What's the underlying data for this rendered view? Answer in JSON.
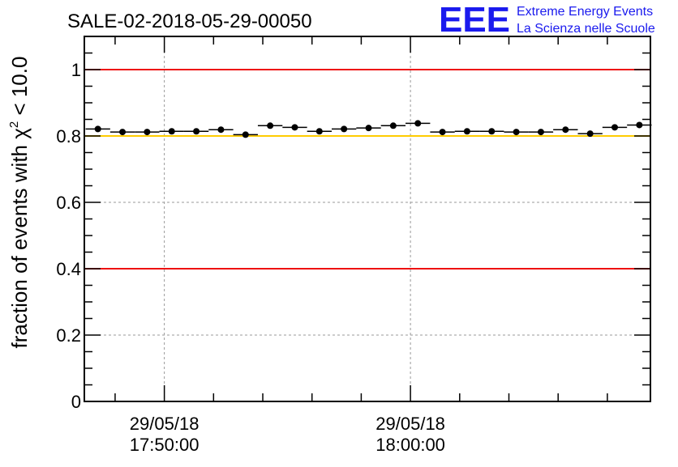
{
  "header": {
    "run_title": "SALE-02-2018-05-29-00050",
    "logo_letters": "EEE",
    "logo_line1": "Extreme Energy Events",
    "logo_line2": "La Scienza nelle Scuole"
  },
  "colors": {
    "red_line": "#ee1111",
    "yellow_line": "#ffcc00",
    "logo_blue": "#1a1aee",
    "points": "#000000",
    "grid": "#999999"
  },
  "chart_data": {
    "type": "scatter",
    "title": "SALE-02-2018-05-29-00050",
    "ylabel_prefix": "fraction of events with ",
    "ylabel_symbol": "χ",
    "ylabel_sup": "2",
    "ylabel_suffix": " < 10.0",
    "ylim": [
      0,
      1.1
    ],
    "yticks": [
      {
        "value": 0,
        "label": "0"
      },
      {
        "value": 0.2,
        "label": "0.2"
      },
      {
        "value": 0.4,
        "label": "0.4"
      },
      {
        "value": 0.6,
        "label": "0.6"
      },
      {
        "value": 0.8,
        "label": "0.8"
      },
      {
        "value": 1,
        "label": "1"
      }
    ],
    "xlim_minutes": [
      -3.25,
      19.75
    ],
    "xticks": [
      {
        "minute": 0,
        "date": "29/05/18",
        "time": "17:50:00"
      },
      {
        "minute": 10,
        "date": "29/05/18",
        "time": "18:00:00"
      }
    ],
    "minor_xticks_minutes": [
      -2,
      2,
      4,
      6,
      8,
      12,
      14,
      16,
      18
    ],
    "bin_width_minutes": 1,
    "reference_lines": [
      {
        "value": 1.0,
        "color": "red"
      },
      {
        "value": 0.8,
        "color": "yellow"
      },
      {
        "value": 0.4,
        "color": "red"
      }
    ],
    "points": [
      {
        "x": -2.7,
        "y": 0.821
      },
      {
        "x": -1.7,
        "y": 0.812
      },
      {
        "x": -0.7,
        "y": 0.812
      },
      {
        "x": 0.3,
        "y": 0.814
      },
      {
        "x": 1.3,
        "y": 0.814
      },
      {
        "x": 2.3,
        "y": 0.819
      },
      {
        "x": 3.3,
        "y": 0.804
      },
      {
        "x": 4.3,
        "y": 0.831
      },
      {
        "x": 5.3,
        "y": 0.826
      },
      {
        "x": 6.3,
        "y": 0.814
      },
      {
        "x": 7.3,
        "y": 0.821
      },
      {
        "x": 8.3,
        "y": 0.824
      },
      {
        "x": 9.3,
        "y": 0.831
      },
      {
        "x": 10.3,
        "y": 0.838
      },
      {
        "x": 11.3,
        "y": 0.812
      },
      {
        "x": 12.3,
        "y": 0.814
      },
      {
        "x": 13.3,
        "y": 0.814
      },
      {
        "x": 14.3,
        "y": 0.812
      },
      {
        "x": 15.3,
        "y": 0.812
      },
      {
        "x": 16.3,
        "y": 0.819
      },
      {
        "x": 17.3,
        "y": 0.807
      },
      {
        "x": 18.3,
        "y": 0.826
      },
      {
        "x": 19.3,
        "y": 0.833
      }
    ]
  }
}
